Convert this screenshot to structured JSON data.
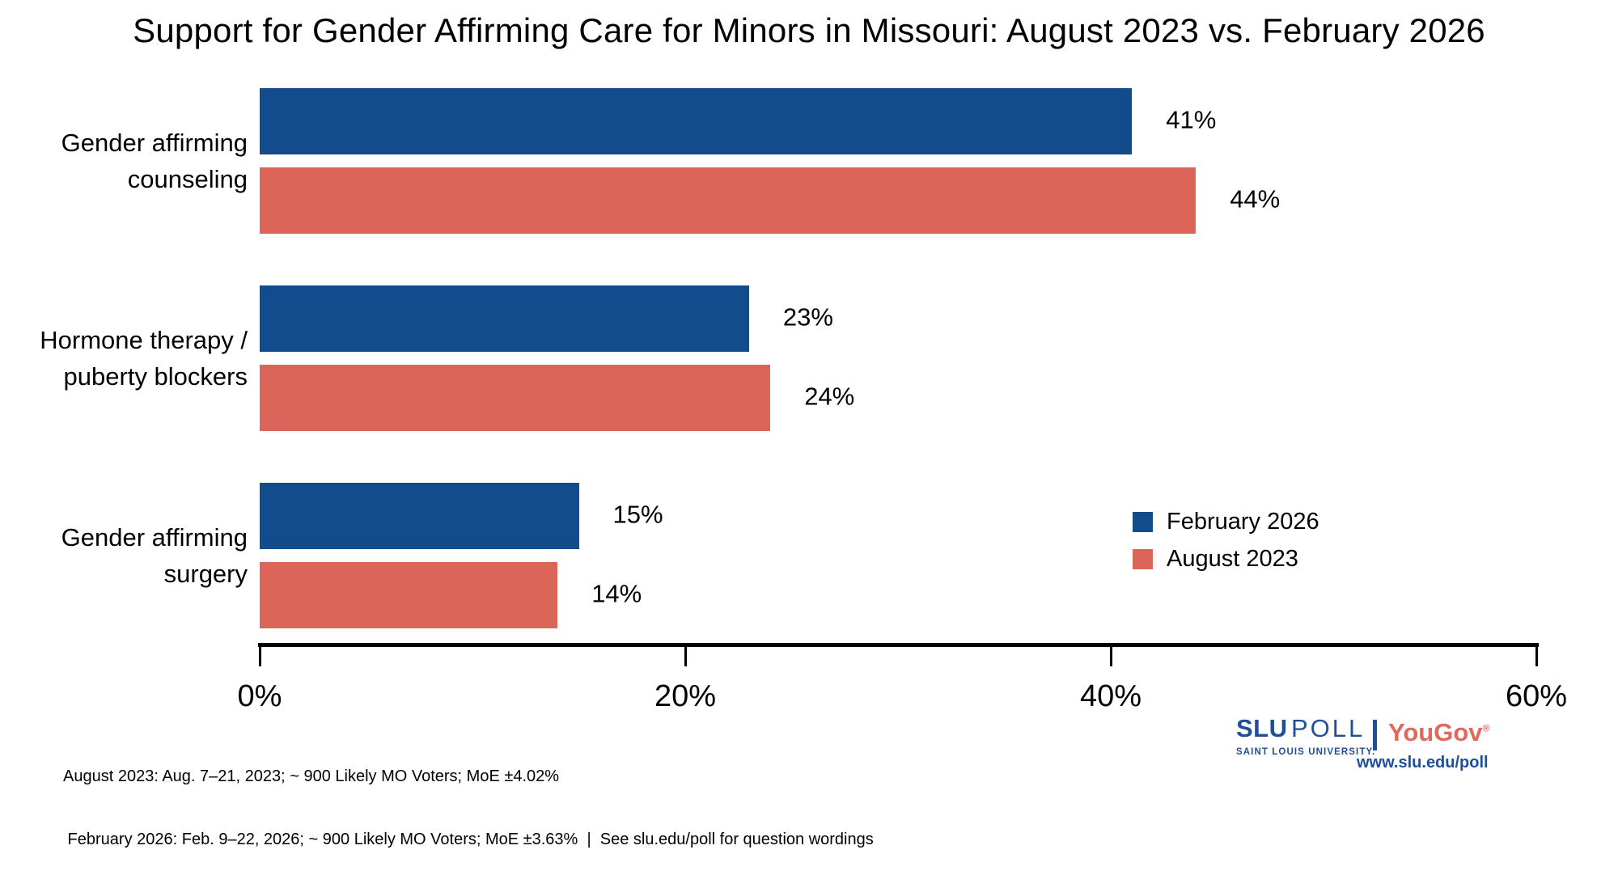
{
  "title": "Support for Gender Affirming Care for Minors in Missouri: August 2023 vs. February 2026",
  "chart_data": {
    "type": "bar",
    "orientation": "horizontal",
    "title": "Support for Gender Affirming Care for Minors in Missouri: August 2023 vs. February 2026",
    "categories": [
      "Gender affirming counseling",
      "Hormone therapy / puberty blockers",
      "Gender affirming surgery"
    ],
    "category_label_lines": [
      [
        "Gender affirming",
        "counseling"
      ],
      [
        "Hormone therapy /",
        "puberty blockers"
      ],
      [
        "Gender affirming",
        "surgery"
      ]
    ],
    "series": [
      {
        "name": "February 2026",
        "color": "#124C8C",
        "values": [
          41,
          23,
          15
        ]
      },
      {
        "name": "August 2023",
        "color": "#DA6558",
        "values": [
          44,
          24,
          14
        ]
      }
    ],
    "value_label_format": "percent",
    "xlim": [
      0,
      60
    ],
    "x_tick_values": [
      0,
      20,
      40,
      60
    ],
    "x_ticks": [
      "0%",
      "20%",
      "40%",
      "60%"
    ],
    "grid": false,
    "legend_position": "right-middle"
  },
  "legend": {
    "items": [
      {
        "label": "February 2026",
        "color": "#124C8C"
      },
      {
        "label": "August 2023",
        "color": "#DA6558"
      }
    ]
  },
  "footnotes": {
    "line1": "August 2023: Aug. 7–21, 2023; ~ 900 Likely MO Voters; MoE ±4.02%",
    "line2": " February 2026: Feb. 9–22, 2026; ~ 900 Likely MO Voters; MoE ±3.63%  |  See slu.edu/poll for question wordings"
  },
  "branding": {
    "slu": "SLU",
    "poll": "POLL",
    "slu_subtext": "SAINT LOUIS UNIVERSITY.",
    "partner": "YouGov",
    "partner_mark": "®",
    "url": "www.slu.edu/poll",
    "slu_blue": "#1F4F9C",
    "yougov_red": "#E2685B"
  }
}
